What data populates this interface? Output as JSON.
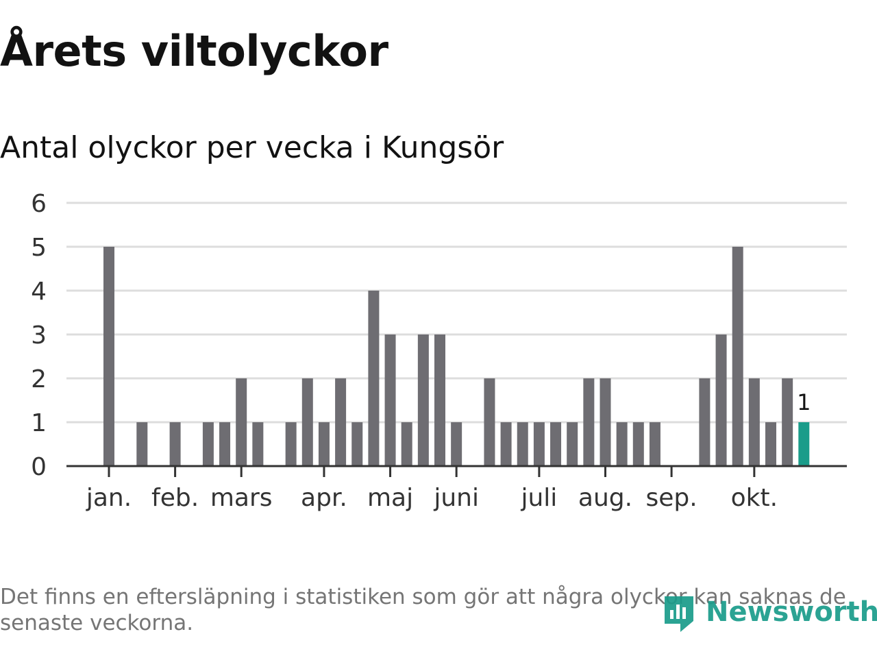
{
  "header": {
    "title": "Årets viltolyckor",
    "subtitle": "Antal olyckor per vecka i Kungsör"
  },
  "footer": {
    "note": "Det finns en eftersläpning i statistiken som gör att några olyckor kan saknas de senaste veckorna.",
    "brand_name": "Newsworthy",
    "brand_icon": "newsworthy-logo-icon"
  },
  "colors": {
    "bar": "#6e6d72",
    "highlight": "#1a9c8a",
    "grid": "#dddddd",
    "axis": "#333333",
    "tick_text": "#333333",
    "brand": "#1a9c8a"
  },
  "chart_data": {
    "type": "bar",
    "weeks": [
      1,
      2,
      3,
      4,
      5,
      6,
      7,
      8,
      9,
      10,
      11,
      12,
      13,
      14,
      15,
      16,
      17,
      18,
      19,
      20,
      21,
      22,
      23,
      24,
      25,
      26,
      27,
      28,
      29,
      30,
      31,
      32,
      33,
      34,
      35,
      36,
      37,
      38,
      39,
      40,
      41,
      42,
      43
    ],
    "values": [
      5,
      0,
      1,
      0,
      1,
      0,
      1,
      1,
      2,
      1,
      0,
      1,
      2,
      1,
      2,
      1,
      4,
      3,
      1,
      3,
      3,
      1,
      0,
      2,
      1,
      1,
      1,
      1,
      1,
      2,
      2,
      1,
      1,
      1,
      0,
      0,
      2,
      3,
      5,
      2,
      1,
      2,
      1
    ],
    "highlight_last": true,
    "last_value_label": "1",
    "month_labels": [
      {
        "label": "jan.",
        "week": 1
      },
      {
        "label": "feb.",
        "week": 5
      },
      {
        "label": "mars",
        "week": 9
      },
      {
        "label": "apr.",
        "week": 14
      },
      {
        "label": "maj",
        "week": 18
      },
      {
        "label": "juni",
        "week": 22
      },
      {
        "label": "juli",
        "week": 27
      },
      {
        "label": "aug.",
        "week": 31
      },
      {
        "label": "sep.",
        "week": 35
      },
      {
        "label": "okt.",
        "week": 40
      }
    ],
    "yticks": [
      0,
      1,
      2,
      3,
      4,
      5,
      6
    ],
    "ylim": [
      0,
      6
    ],
    "grid": true,
    "legend": "none"
  }
}
